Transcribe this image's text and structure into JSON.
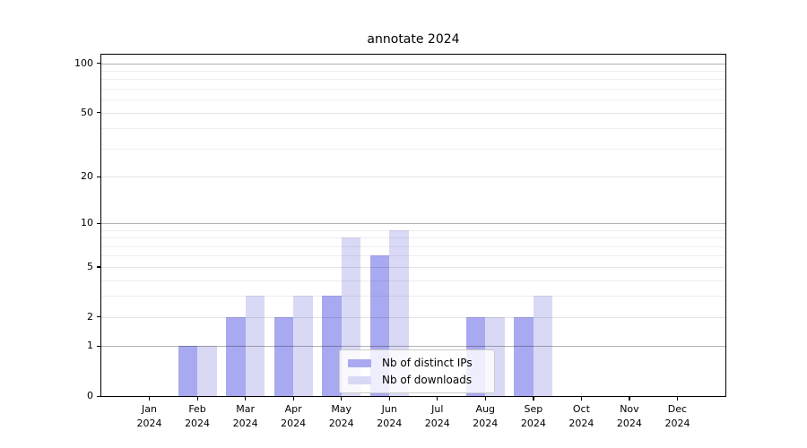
{
  "chart_data": {
    "type": "bar",
    "title": "annotate 2024",
    "categories": [
      "Jan",
      "Feb",
      "Mar",
      "Apr",
      "May",
      "Jun",
      "Jul",
      "Aug",
      "Sep",
      "Oct",
      "Nov",
      "Dec"
    ],
    "x_year_label": "2024",
    "series": [
      {
        "name": "Nb of distinct IPs",
        "color": "#a9a9f1",
        "values": [
          0,
          1,
          2,
          2,
          3,
          6,
          0,
          2,
          2,
          0,
          0,
          0
        ]
      },
      {
        "name": "Nb of downloads",
        "color": "#d9d9f6",
        "values": [
          0,
          1,
          3,
          3,
          8,
          9,
          0,
          2,
          3,
          0,
          0,
          0
        ]
      }
    ],
    "yscale": "log1p",
    "ylim": [
      0,
      113
    ],
    "yticks": [
      0,
      1,
      2,
      5,
      10,
      20,
      50,
      100
    ],
    "yticks_minor": [
      3,
      4,
      6,
      7,
      8,
      9,
      30,
      40,
      60,
      70,
      80,
      90
    ],
    "grid": true,
    "legend_position": "lower-center-inside",
    "background_color": "#ffffff",
    "axis_color": "#000000"
  }
}
